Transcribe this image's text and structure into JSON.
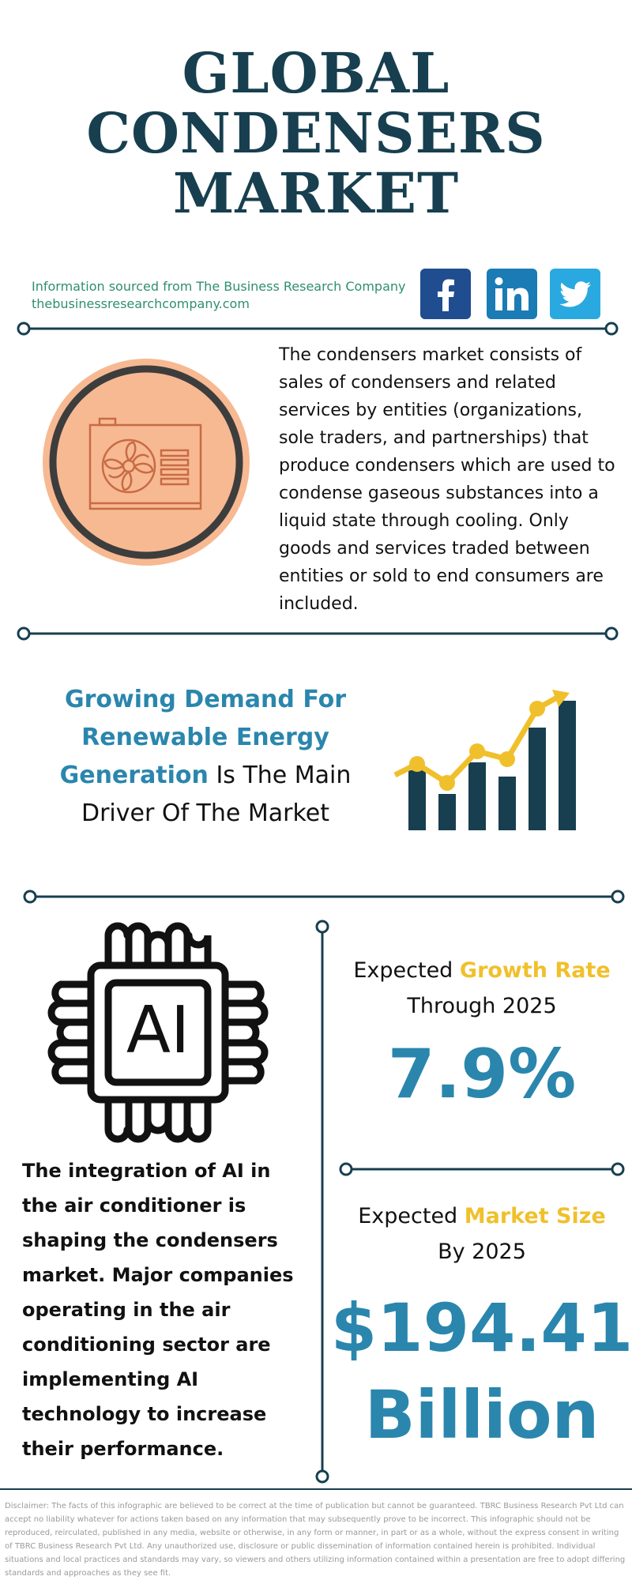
{
  "header": {
    "title_lines": [
      "GLOBAL",
      "CONDENSERS",
      "MARKET"
    ]
  },
  "source": {
    "line1": "Information sourced from The Business Research Company",
    "line2": "thebusinessresearchcompany.com"
  },
  "social": {
    "icons": [
      "facebook-icon",
      "linkedin-icon",
      "twitter-icon"
    ],
    "colors": {
      "facebook": "#1f4d8f",
      "linkedin": "#1a7bb5",
      "twitter": "#29a9e0"
    }
  },
  "about": {
    "text": "The condensers market consists of sales of condensers and related services by entities (organizations, sole traders, and partnerships) that produce condensers which are used to condense gaseous substances into a liquid state through cooling. Only goods and services traded between entities or sold to end consumers are included."
  },
  "driver": {
    "highlight": "Growing Demand For Renewable Energy Generation",
    "rest": " Is The Main Driver Of The Market"
  },
  "trend": {
    "text": "The integration of AI in the air conditioner is shaping the condensers market. Major companies operating in the air conditioning sector are implementing AI technology to increase their performance.",
    "icon_text": "AI"
  },
  "growth": {
    "prefix": "Expected ",
    "highlight": "Growth Rate",
    "line2": "Through 2025",
    "value": "7.9%"
  },
  "market_size": {
    "prefix": "Expected ",
    "highlight": "Market Size",
    "line2": "By 2025",
    "value_line1": "$194.41",
    "value_line2": "Billion"
  },
  "disclaimer": "Disclaimer: The facts of this infographic are believed to be correct at the time of publication but cannot be guaranteed. TBRC Business Research Pvt Ltd can accept no liability whatever for actions taken based on any information that may subsequently prove to be incorrect. This infographic should not be reproduced, reirculated, published in any media, website or otherwise, in any form or manner, in part or as a whole, without the express consent in writing of TBRC Business Research Pvt Ltd. Any unauthorized use, disclosure or public dissemination of information contained herein is prohibited. Individual situations and local practices and standards may vary, so viewers and others utilizing information contained within a presentation are free to adopt differing standards and approaches as they see fit.",
  "colors": {
    "navy": "#173f4f",
    "blue": "#2a86ad",
    "yellow": "#f0c02c",
    "green": "#2f8f6e",
    "peach": "#f7b992"
  }
}
